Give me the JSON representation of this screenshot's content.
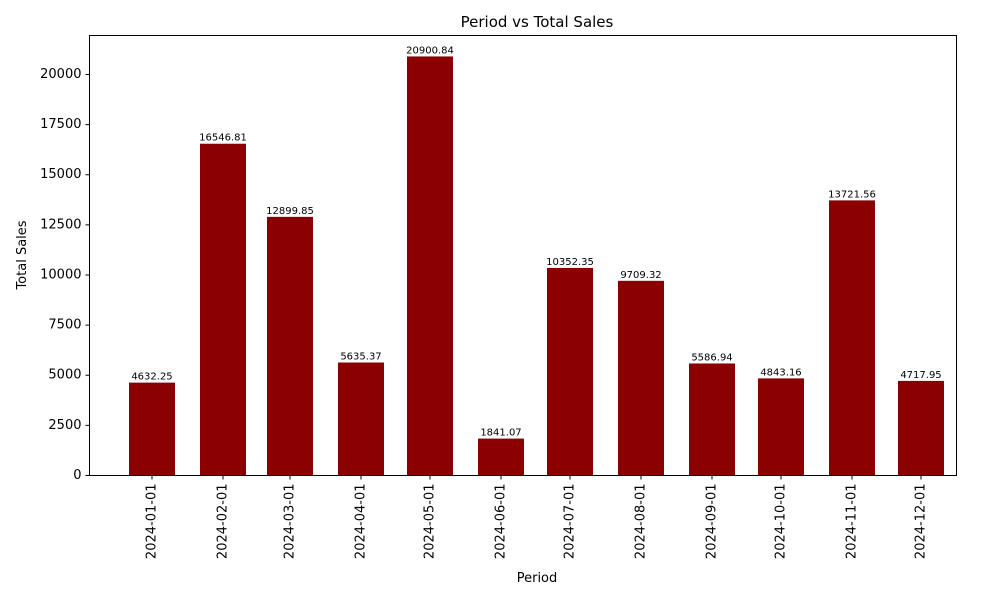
{
  "chart_data": {
    "type": "bar",
    "title": "Period vs Total Sales",
    "xlabel": "Period",
    "ylabel": "Total Sales",
    "categories": [
      "2024-01-01",
      "2024-02-01",
      "2024-03-01",
      "2024-04-01",
      "2024-05-01",
      "2024-06-01",
      "2024-07-01",
      "2024-08-01",
      "2024-09-01",
      "2024-10-01",
      "2024-11-01",
      "2024-12-01"
    ],
    "values": [
      4632.25,
      16546.81,
      12899.85,
      5635.37,
      20900.84,
      1841.07,
      10352.35,
      9709.32,
      5586.94,
      4843.16,
      13721.56,
      4717.95
    ],
    "data_labels": [
      "4632.25",
      "16546.81",
      "12899.85",
      "5635.37",
      "20900.84",
      "1841.07",
      "10352.35",
      "9709.32",
      "5586.94",
      "4843.16",
      "13721.56",
      "4717.95"
    ],
    "yticks": [
      "0",
      "2500",
      "5000",
      "7500",
      "10000",
      "12500",
      "15000",
      "17500",
      "20000"
    ],
    "ylim": [
      0,
      21945
    ],
    "bar_color": "#8b0000",
    "grid": false,
    "legend": "none"
  }
}
